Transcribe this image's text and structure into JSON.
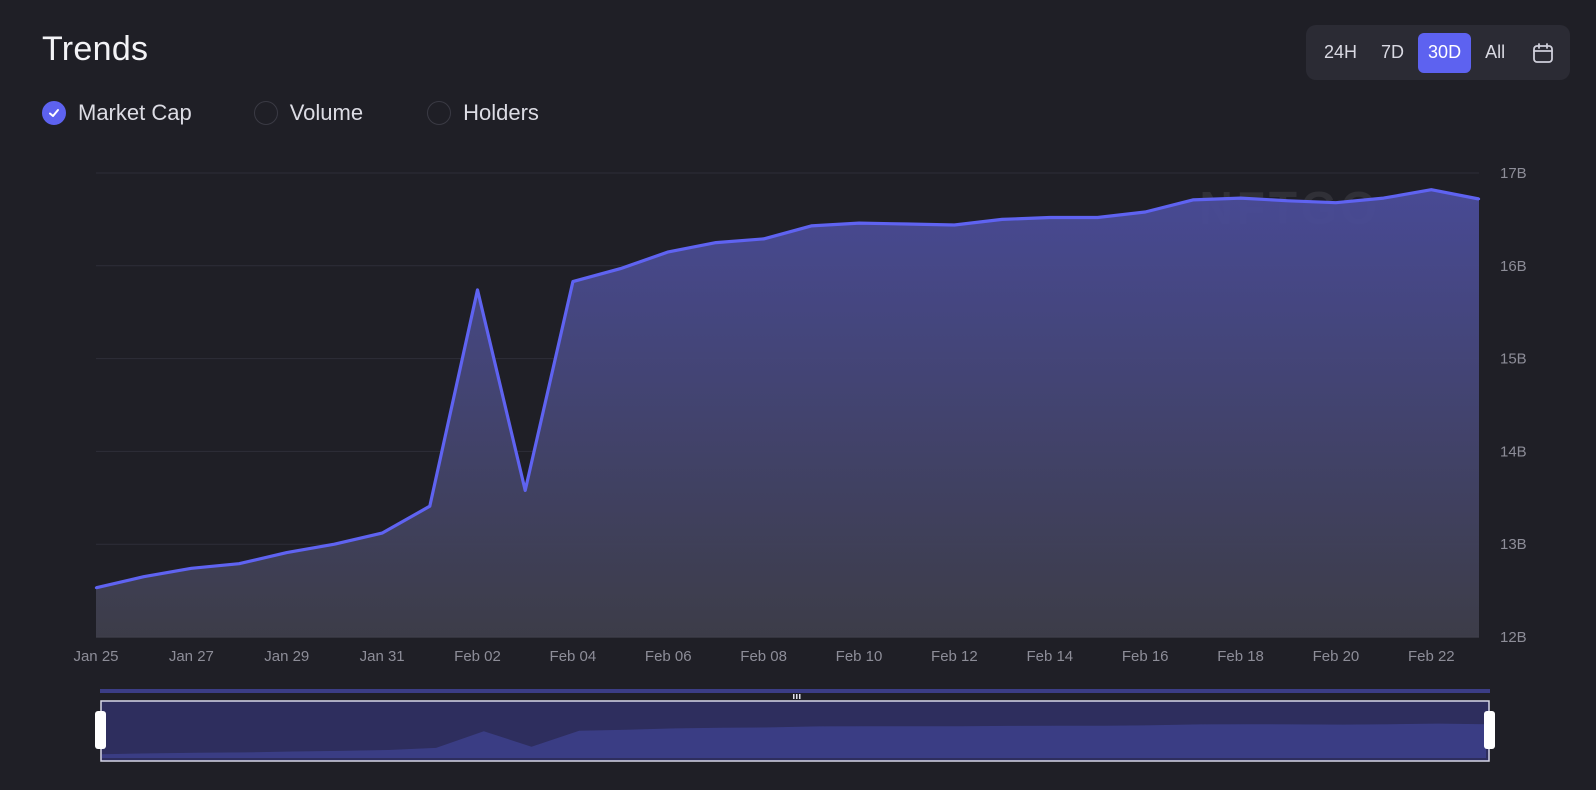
{
  "header": {
    "title": "Trends"
  },
  "range": {
    "options": [
      "24H",
      "7D",
      "30D",
      "All"
    ],
    "selected": "30D",
    "calendar_icon": "calendar-icon"
  },
  "legend": {
    "items": [
      {
        "label": "Market Cap",
        "checked": true
      },
      {
        "label": "Volume",
        "checked": false
      },
      {
        "label": "Holders",
        "checked": false
      }
    ]
  },
  "colors": {
    "background": "#1f1f26",
    "accent": "#5d62f0",
    "line": "#5f63f1"
  },
  "watermark": "NFTGO",
  "chart_data": {
    "type": "area",
    "series": [
      {
        "x": [
          "2023-01-25",
          "2023-01-26",
          "2023-01-27",
          "2023-01-28",
          "2023-01-29",
          "2023-01-30",
          "2023-01-31",
          "2023-02-01",
          "2023-02-02",
          "2023-02-03",
          "2023-02-04",
          "2023-02-05",
          "2023-02-06",
          "2023-02-07",
          "2023-02-08",
          "2023-02-09",
          "2023-02-10",
          "2023-02-11",
          "2023-02-12",
          "2023-02-13",
          "2023-02-14",
          "2023-02-15",
          "2023-02-16",
          "2023-02-17",
          "2023-02-18",
          "2023-02-19",
          "2023-02-20",
          "2023-02-21",
          "2023-02-22",
          "2023-02-23"
        ],
        "values": [
          12.53,
          12.65,
          12.74,
          12.79,
          12.91,
          13.0,
          13.12,
          13.41,
          15.74,
          13.58,
          15.83,
          15.97,
          16.15,
          16.25,
          16.29,
          16.43,
          16.46,
          16.45,
          16.44,
          16.5,
          16.52,
          16.52,
          16.58,
          16.71,
          16.73,
          16.7,
          16.68,
          16.73,
          16.82,
          16.72
        ]
      }
    ],
    "x_tick_labels": [
      "Jan 25",
      "Jan 27",
      "Jan 29",
      "Jan 31",
      "Feb 02",
      "Feb 04",
      "Feb 06",
      "Feb 08",
      "Feb 10",
      "Feb 12",
      "Feb 14",
      "Feb 16",
      "Feb 18",
      "Feb 20",
      "Feb 22"
    ],
    "y_tick_labels": [
      "12B",
      "13B",
      "14B",
      "15B",
      "16B",
      "17B"
    ],
    "y_ticks": [
      12,
      13,
      14,
      15,
      16,
      17
    ],
    "ylim": [
      12,
      17
    ],
    "y_axis_position": "right",
    "grid": true
  }
}
